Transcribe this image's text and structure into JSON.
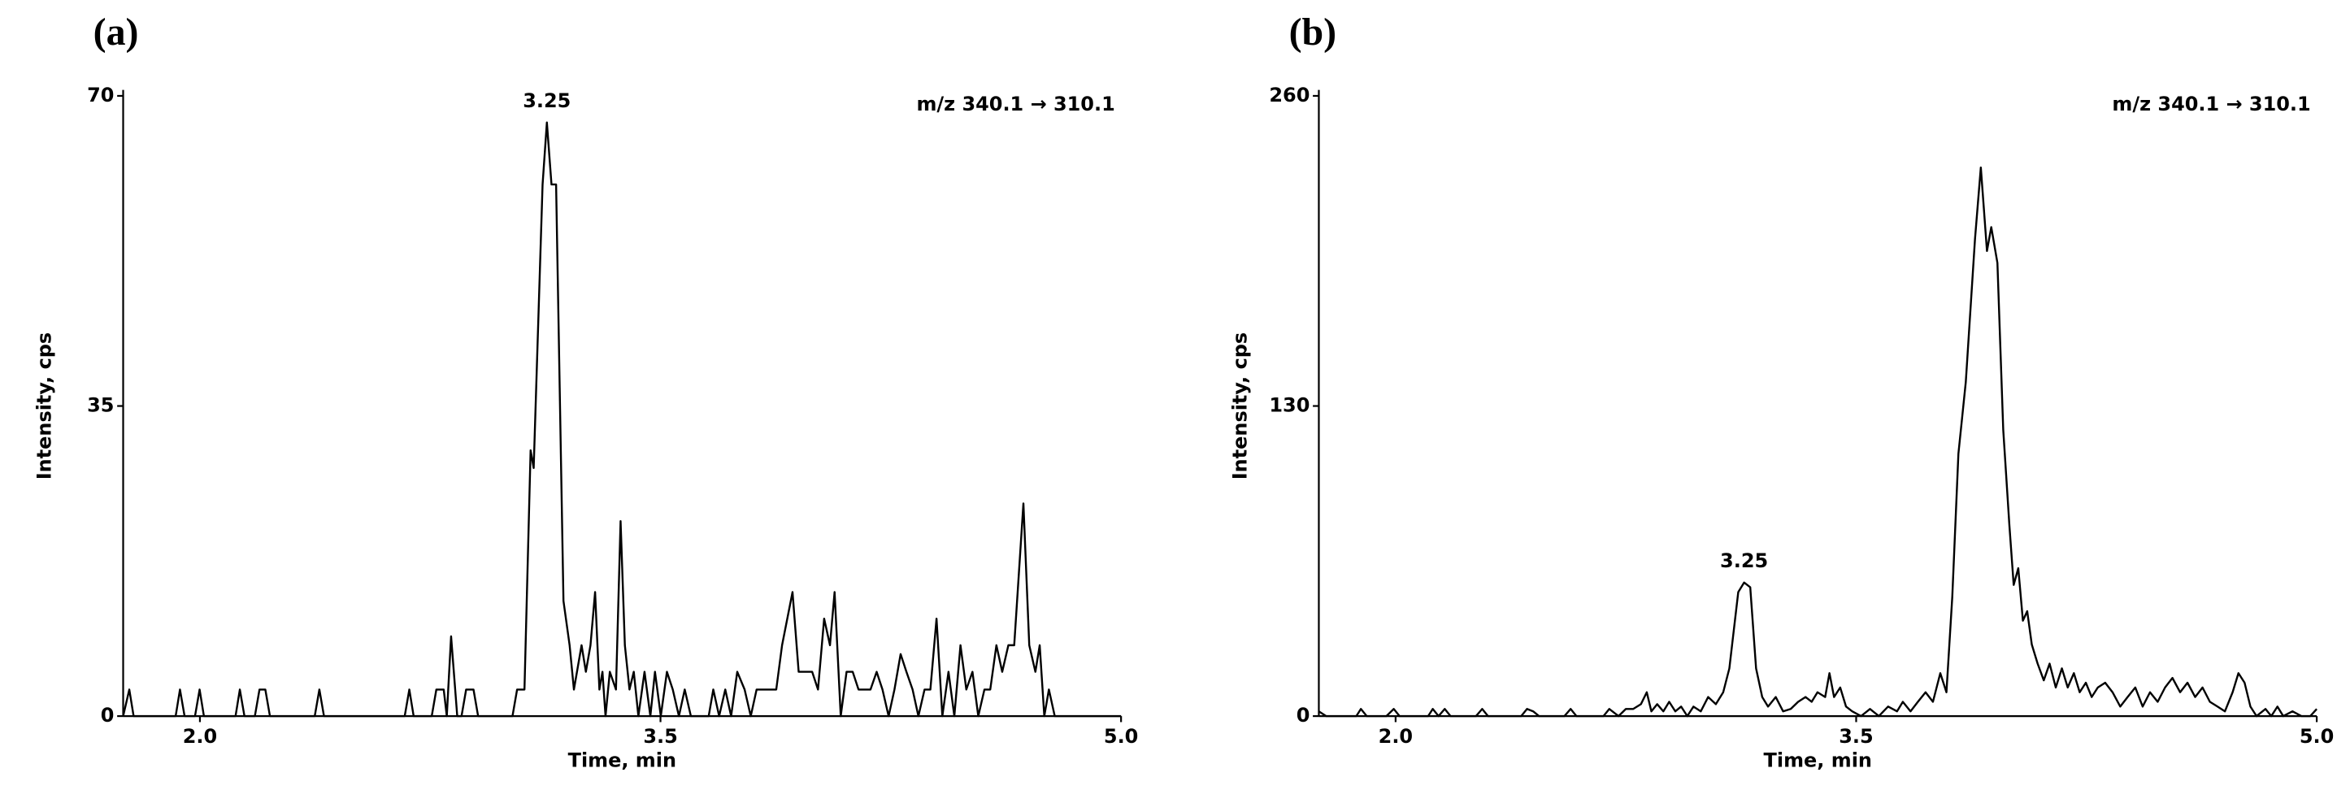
{
  "chart_data": [
    {
      "type": "line",
      "panel_label": "(a)",
      "annotation": "m/z 340.1 → 310.1",
      "peak_label": "3.25",
      "xlabel": "Time, min",
      "ylabel": "Intensity, cps",
      "color": "#000000",
      "xlim": [
        1.75,
        5.0
      ],
      "ylim": [
        0,
        70
      ],
      "xticks": [
        {
          "value": 2,
          "label": "2.0"
        },
        {
          "value": 3.5,
          "label": "3.5"
        },
        {
          "value": 5,
          "label": "5.0"
        }
      ],
      "yticks": [
        0,
        35,
        70
      ],
      "x": [
        1.75,
        1.77,
        1.784,
        1.921,
        1.935,
        1.95,
        1.984,
        1.999,
        2.013,
        2.116,
        2.13,
        2.145,
        2.179,
        2.194,
        2.213,
        2.228,
        2.374,
        2.389,
        2.404,
        2.667,
        2.682,
        2.696,
        2.755,
        2.77,
        2.794,
        2.804,
        2.818,
        2.838,
        2.852,
        2.867,
        2.891,
        2.906,
        3.018,
        3.033,
        3.057,
        3.077,
        3.087,
        3.116,
        3.13,
        3.145,
        3.16,
        3.184,
        3.204,
        3.218,
        3.243,
        3.257,
        3.272,
        3.287,
        3.301,
        3.311,
        3.321,
        3.335,
        3.355,
        3.37,
        3.384,
        3.399,
        3.413,
        3.428,
        3.448,
        3.467,
        3.482,
        3.501,
        3.521,
        3.54,
        3.56,
        3.579,
        3.599,
        3.657,
        3.672,
        3.691,
        3.711,
        3.73,
        3.75,
        3.774,
        3.794,
        3.813,
        3.838,
        3.877,
        3.896,
        3.93,
        3.95,
        3.994,
        4.013,
        4.033,
        4.052,
        4.067,
        4.087,
        4.106,
        4.126,
        4.145,
        4.184,
        4.204,
        4.223,
        4.243,
        4.262,
        4.282,
        4.301,
        4.321,
        4.34,
        4.36,
        4.379,
        4.399,
        4.418,
        4.438,
        4.457,
        4.477,
        4.496,
        4.516,
        4.535,
        4.555,
        4.574,
        4.594,
        4.613,
        4.633,
        4.652,
        4.682,
        4.701,
        4.721,
        4.735,
        4.75,
        4.765,
        4.784,
        5.0
      ],
      "values": [
        0,
        3,
        0,
        0,
        3,
        0,
        0,
        3,
        0,
        0,
        3,
        0,
        0,
        3,
        3,
        0,
        0,
        3,
        0,
        0,
        3,
        0,
        0,
        3,
        3,
        0,
        9,
        0,
        0,
        3,
        3,
        0,
        0,
        3,
        3,
        30,
        28,
        60,
        67,
        60,
        60,
        13,
        8,
        3,
        8,
        5,
        8,
        14,
        3,
        5,
        0,
        5,
        3,
        22,
        8,
        3,
        5,
        0,
        5,
        0,
        5,
        0,
        5,
        3,
        0,
        3,
        0,
        0,
        3,
        0,
        3,
        0,
        5,
        3,
        0,
        3,
        3,
        3,
        8,
        14,
        5,
        5,
        3,
        11,
        8,
        14,
        0,
        5,
        5,
        3,
        3,
        5,
        3,
        0,
        3,
        7,
        5,
        3,
        0,
        3,
        3,
        11,
        0,
        5,
        0,
        8,
        3,
        5,
        0,
        3,
        3,
        8,
        5,
        8,
        8,
        24,
        8,
        5,
        8,
        0,
        3,
        0,
        0
      ]
    },
    {
      "type": "line",
      "panel_label": "(b)",
      "annotation": "m/z 340.1 → 310.1",
      "peak_label": "3.25",
      "xlabel": "Time, min",
      "ylabel": "Intensity, cps",
      "color": "#000000",
      "xlim": [
        1.75,
        5.0
      ],
      "ylim": [
        0,
        260
      ],
      "xticks": [
        {
          "value": 2,
          "label": "2.0"
        },
        {
          "value": 3.5,
          "label": "3.5"
        },
        {
          "value": 5,
          "label": "5.0"
        }
      ],
      "yticks": [
        0,
        130,
        260
      ],
      "x": [
        1.75,
        1.774,
        1.872,
        1.887,
        1.906,
        1.97,
        1.994,
        2.013,
        2.106,
        2.121,
        2.14,
        2.16,
        2.179,
        2.262,
        2.282,
        2.301,
        2.409,
        2.428,
        2.448,
        2.467,
        2.55,
        2.57,
        2.589,
        2.677,
        2.696,
        2.726,
        2.75,
        2.774,
        2.799,
        2.818,
        2.833,
        2.852,
        2.872,
        2.891,
        2.911,
        2.93,
        2.95,
        2.97,
        2.994,
        3.018,
        3.043,
        3.067,
        3.087,
        3.096,
        3.116,
        3.135,
        3.155,
        3.174,
        3.194,
        3.213,
        3.238,
        3.262,
        3.287,
        3.311,
        3.335,
        3.355,
        3.374,
        3.399,
        3.413,
        3.428,
        3.448,
        3.467,
        3.487,
        3.516,
        3.545,
        3.574,
        3.604,
        3.633,
        3.652,
        3.677,
        3.701,
        3.726,
        3.75,
        3.774,
        3.794,
        3.813,
        3.833,
        3.857,
        3.887,
        3.906,
        3.926,
        3.94,
        3.96,
        3.979,
        3.999,
        4.013,
        4.028,
        4.043,
        4.057,
        4.072,
        4.091,
        4.111,
        4.13,
        4.15,
        4.17,
        4.189,
        4.209,
        4.228,
        4.248,
        4.267,
        4.287,
        4.311,
        4.335,
        4.36,
        4.384,
        4.409,
        4.433,
        4.457,
        4.482,
        4.506,
        4.53,
        4.555,
        4.579,
        4.604,
        4.628,
        4.652,
        4.677,
        4.701,
        4.726,
        4.745,
        4.765,
        4.784,
        4.804,
        4.833,
        4.852,
        4.872,
        4.891,
        4.921,
        4.95,
        4.979,
        5.0
      ],
      "values": [
        2,
        0,
        0,
        3,
        0,
        0,
        3,
        0,
        0,
        3,
        0,
        3,
        0,
        0,
        3,
        0,
        0,
        3,
        2,
        0,
        0,
        3,
        0,
        0,
        3,
        0,
        3,
        3,
        5,
        10,
        2,
        5,
        2,
        6,
        2,
        4,
        0,
        4,
        2,
        8,
        5,
        10,
        20,
        30,
        52,
        56,
        54,
        20,
        8,
        4,
        8,
        2,
        3,
        6,
        8,
        6,
        10,
        8,
        18,
        8,
        12,
        4,
        2,
        0,
        3,
        0,
        4,
        2,
        6,
        2,
        6,
        10,
        6,
        18,
        10,
        50,
        110,
        140,
        200,
        230,
        195,
        205,
        190,
        120,
        80,
        55,
        62,
        40,
        44,
        30,
        22,
        15,
        22,
        12,
        20,
        12,
        18,
        10,
        14,
        8,
        12,
        14,
        10,
        4,
        8,
        12,
        4,
        10,
        6,
        12,
        16,
        10,
        14,
        8,
        12,
        6,
        4,
        2,
        10,
        18,
        14,
        4,
        0,
        3,
        0,
        4,
        0,
        2,
        0,
        0,
        3
      ]
    }
  ]
}
